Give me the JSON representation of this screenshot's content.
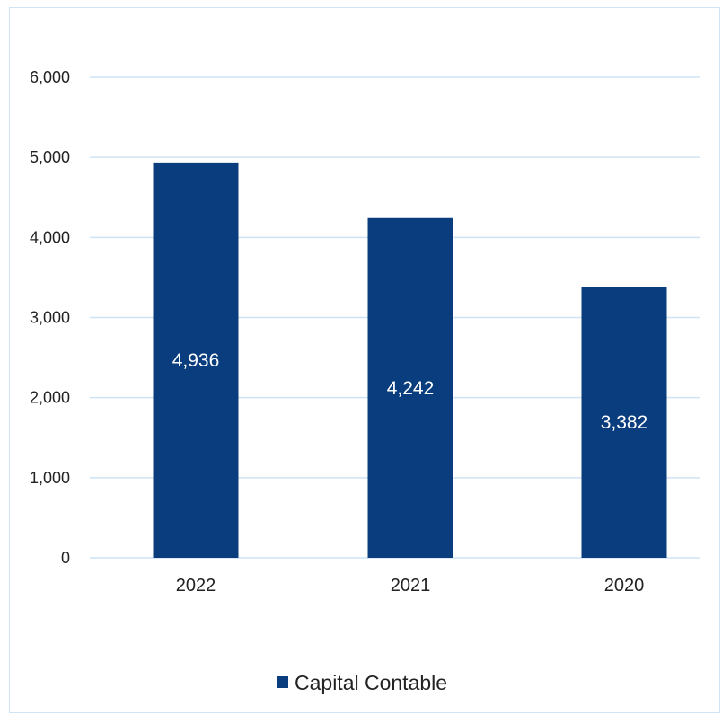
{
  "chart_data": {
    "type": "bar",
    "categories": [
      "2022",
      "2021",
      "2020"
    ],
    "series": [
      {
        "name": "Capital Contable",
        "values": [
          4936,
          4242,
          3382
        ],
        "data_labels": [
          "4,936",
          "4,242",
          "3,382"
        ]
      }
    ],
    "ylim": [
      0,
      6000
    ],
    "yticks": [
      "0",
      "1,000",
      "2,000",
      "3,000",
      "4,000",
      "5,000",
      "6,000"
    ],
    "grid": true,
    "legend": "bottom",
    "colors": {
      "bar": "#0a3d7d",
      "grid": "#cfe3f5",
      "border": "#cfe3f5"
    }
  }
}
